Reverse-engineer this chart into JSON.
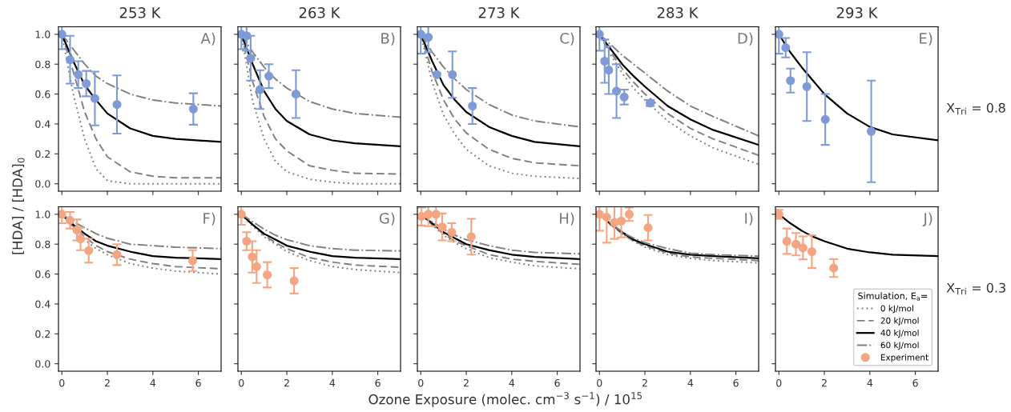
{
  "chart_data": [
    {
      "type": "line",
      "title": "253 K",
      "ylabel": "[HDA] / [HDA]$_{0}$",
      "xlim": [
        -0.15,
        7
      ],
      "xticks": [
        0,
        2,
        4,
        6
      ],
      "ylim": [
        -0.05,
        1.05
      ],
      "yticks": [
        {
          "value": 0,
          "label": "0.0"
        },
        {
          "value": 0.2,
          "label": "0.2"
        },
        {
          "value": 0.4,
          "label": "0.4"
        },
        {
          "value": 0.6,
          "label": "0.6"
        },
        {
          "value": 0.8,
          "label": "0.8"
        },
        {
          "value": 1,
          "label": "1.0"
        }
      ],
      "tick_labels": "y",
      "annotations": [
        "A)"
      ],
      "series": [
        {
          "type": "line",
          "x": [
            0,
            0.5,
            1,
            1.5,
            2,
            3,
            4,
            5,
            7
          ],
          "values": [
            1,
            0.6,
            0.3,
            0.1,
            0.02,
            0,
            0,
            0,
            0
          ],
          "color": "#808080",
          "line_style": "dotted"
        },
        {
          "type": "line",
          "x": [
            0,
            0.5,
            1,
            1.5,
            2,
            3,
            4,
            5,
            7
          ],
          "values": [
            1,
            0.75,
            0.48,
            0.3,
            0.18,
            0.08,
            0.05,
            0.04,
            0.04
          ],
          "color": "#808080",
          "line_style": "dashed"
        },
        {
          "type": "line",
          "x": [
            0,
            0.5,
            1,
            1.5,
            2,
            3,
            4,
            5,
            7
          ],
          "values": [
            1,
            0.82,
            0.66,
            0.56,
            0.47,
            0.37,
            0.32,
            0.3,
            0.28
          ],
          "color": "#000000",
          "line_style": "solid"
        },
        {
          "type": "line",
          "x": [
            0,
            0.5,
            1,
            1.5,
            2,
            3,
            4,
            5,
            7
          ],
          "values": [
            1,
            0.9,
            0.8,
            0.72,
            0.67,
            0.6,
            0.56,
            0.54,
            0.52
          ],
          "color": "#808080",
          "line_style": "dashdot"
        },
        {
          "type": "scatter",
          "marker": "circle",
          "x": [
            0,
            0.36,
            0.72,
            1.07,
            1.45,
            2.42,
            5.78
          ],
          "values": [
            1.0,
            0.83,
            0.73,
            0.67,
            0.57,
            0.53,
            0.5
          ],
          "errors": [
            0.1,
            0.16,
            0.09,
            0.085,
            0.18,
            0.195,
            0.105
          ],
          "color": "#7f9bd6"
        }
      ]
    },
    {
      "type": "line",
      "title": "263 K",
      "xlim": [
        -0.15,
        7
      ],
      "xticks": [
        0,
        2,
        4,
        6
      ],
      "ylim": [
        -0.05,
        1.05
      ],
      "yticks": [
        0,
        0.2,
        0.4,
        0.6,
        0.8,
        1
      ],
      "tick_labels": false,
      "annotations": [
        "B)"
      ],
      "series": [
        {
          "type": "line",
          "x": [
            0,
            0.5,
            1,
            1.5,
            2,
            3,
            4,
            5,
            7
          ],
          "values": [
            1,
            0.55,
            0.3,
            0.15,
            0.08,
            0.03,
            0.01,
            0,
            0
          ],
          "color": "#808080",
          "line_style": "dotted"
        },
        {
          "type": "line",
          "x": [
            0,
            0.5,
            1,
            1.5,
            2,
            3,
            4,
            5,
            7
          ],
          "values": [
            1,
            0.68,
            0.45,
            0.3,
            0.22,
            0.12,
            0.09,
            0.07,
            0.065
          ],
          "color": "#808080",
          "line_style": "dashed"
        },
        {
          "type": "line",
          "x": [
            0,
            0.5,
            1,
            1.5,
            2,
            3,
            4,
            5,
            7
          ],
          "values": [
            1,
            0.8,
            0.62,
            0.5,
            0.42,
            0.33,
            0.29,
            0.27,
            0.25
          ],
          "color": "#000000",
          "line_style": "solid"
        },
        {
          "type": "line",
          "x": [
            0,
            0.5,
            1,
            1.5,
            2,
            3,
            4,
            5,
            7
          ],
          "values": [
            1,
            0.88,
            0.78,
            0.7,
            0.64,
            0.55,
            0.5,
            0.47,
            0.445
          ],
          "color": "#808080",
          "line_style": "dashdot"
        },
        {
          "type": "scatter",
          "marker": "circle",
          "x": [
            0,
            0.23,
            0.41,
            0.82,
            1.21,
            2.4
          ],
          "values": [
            1.0,
            0.99,
            0.84,
            0.63,
            0.72,
            0.6
          ],
          "errors": [
            0.1,
            0.1,
            0.15,
            0.13,
            0.08,
            0.16
          ],
          "color": "#7f9bd6"
        }
      ]
    },
    {
      "type": "line",
      "title": "273 K",
      "xlim": [
        -0.15,
        7
      ],
      "xticks": [
        0,
        2,
        4,
        6
      ],
      "ylim": [
        -0.05,
        1.05
      ],
      "yticks": [
        0,
        0.2,
        0.4,
        0.6,
        0.8,
        1
      ],
      "tick_labels": false,
      "annotations": [
        "C)"
      ],
      "series": [
        {
          "type": "line",
          "x": [
            0,
            0.5,
            1,
            1.5,
            2,
            3,
            4,
            5,
            7
          ],
          "values": [
            1,
            0.68,
            0.46,
            0.33,
            0.23,
            0.12,
            0.07,
            0.05,
            0.035
          ],
          "color": "#808080",
          "line_style": "dotted"
        },
        {
          "type": "line",
          "x": [
            0,
            0.5,
            1,
            1.5,
            2,
            3,
            4,
            5,
            7
          ],
          "values": [
            1,
            0.75,
            0.56,
            0.43,
            0.34,
            0.23,
            0.17,
            0.14,
            0.12
          ],
          "color": "#808080",
          "line_style": "dashed"
        },
        {
          "type": "line",
          "x": [
            0,
            0.5,
            1,
            1.5,
            2,
            3,
            4,
            5,
            7
          ],
          "values": [
            1,
            0.82,
            0.66,
            0.56,
            0.48,
            0.38,
            0.32,
            0.28,
            0.25
          ],
          "color": "#000000",
          "line_style": "solid"
        },
        {
          "type": "line",
          "x": [
            0,
            0.5,
            1,
            1.5,
            2,
            3,
            4,
            5,
            7
          ],
          "values": [
            1,
            0.88,
            0.78,
            0.7,
            0.63,
            0.53,
            0.46,
            0.42,
            0.38
          ],
          "color": "#808080",
          "line_style": "dashdot"
        },
        {
          "type": "scatter",
          "marker": "circle",
          "x": [
            0,
            0.33,
            0.71,
            1.39,
            2.27
          ],
          "values": [
            1.0,
            0.98,
            0.73,
            0.73,
            0.52
          ],
          "errors": [
            0.13,
            0.1,
            null,
            0.155,
            0.12
          ],
          "color": "#7f9bd6"
        }
      ]
    },
    {
      "type": "line",
      "title": "283 K",
      "xlim": [
        -0.15,
        7
      ],
      "xticks": [
        0,
        2,
        4,
        6
      ],
      "ylim": [
        -0.05,
        1.05
      ],
      "yticks": [
        0,
        0.2,
        0.4,
        0.6,
        0.8,
        1
      ],
      "tick_labels": false,
      "annotations": [
        "D)"
      ],
      "series": [
        {
          "type": "line",
          "x": [
            0,
            0.5,
            1,
            1.5,
            2,
            3,
            4,
            5,
            7
          ],
          "values": [
            1,
            0.86,
            0.74,
            0.64,
            0.56,
            0.42,
            0.32,
            0.24,
            0.13
          ],
          "color": "#808080",
          "line_style": "dotted"
        },
        {
          "type": "line",
          "x": [
            0,
            0.5,
            1,
            1.5,
            2,
            3,
            4,
            5,
            7
          ],
          "values": [
            1,
            0.88,
            0.77,
            0.68,
            0.6,
            0.47,
            0.37,
            0.3,
            0.19
          ],
          "color": "#808080",
          "line_style": "dashed"
        },
        {
          "type": "line",
          "x": [
            0,
            0.5,
            1,
            1.5,
            2,
            3,
            4,
            5,
            7
          ],
          "values": [
            1,
            0.9,
            0.8,
            0.72,
            0.65,
            0.52,
            0.43,
            0.36,
            0.26
          ],
          "color": "#000000",
          "line_style": "solid"
        },
        {
          "type": "line",
          "x": [
            0,
            0.5,
            1,
            1.5,
            2,
            3,
            4,
            5,
            7
          ],
          "values": [
            1,
            0.93,
            0.86,
            0.8,
            0.74,
            0.62,
            0.52,
            0.45,
            0.32
          ],
          "color": "#808080",
          "line_style": "dashdot"
        },
        {
          "type": "scatter",
          "marker": "circle",
          "x": [
            0,
            0.23,
            0.41,
            0.75,
            1.09,
            2.23
          ],
          "values": [
            1.0,
            0.82,
            0.76,
            0.62,
            0.58,
            0.54
          ],
          "errors": [
            0.11,
            0.145,
            0.16,
            0.18,
            0.05,
            0.02
          ],
          "color": "#7f9bd6"
        }
      ]
    },
    {
      "type": "line",
      "title": "293 K",
      "xlim": [
        -0.15,
        7
      ],
      "xticks": [
        0,
        2,
        4,
        6
      ],
      "ylim": [
        -0.05,
        1.05
      ],
      "yticks": [
        0,
        0.2,
        0.4,
        0.6,
        0.8,
        1
      ],
      "tick_labels": false,
      "annotations": [
        "E)",
        "X$_{Tri}$ = 0.8"
      ],
      "series": [
        {
          "type": "line",
          "x": [
            0,
            0.5,
            1,
            1.5,
            2,
            3,
            4,
            5,
            7
          ],
          "values": [
            1,
            0.88,
            0.78,
            0.69,
            0.6,
            0.47,
            0.38,
            0.33,
            0.29
          ],
          "color": "#000000",
          "line_style": "solid"
        },
        {
          "type": "scatter",
          "marker": "circle",
          "x": [
            0,
            0.3,
            0.51,
            1.23,
            2.04,
            4.06
          ],
          "values": [
            1.0,
            0.91,
            0.69,
            0.65,
            0.43,
            0.35
          ],
          "errors": [
            0.13,
            0.065,
            0.08,
            0.23,
            0.17,
            0.34
          ],
          "color": "#7f9bd6"
        }
      ]
    },
    {
      "type": "line",
      "xlim": [
        -0.15,
        7
      ],
      "xticks": [
        0,
        2,
        4,
        6
      ],
      "ylim": [
        -0.05,
        1.05
      ],
      "yticks": [
        {
          "value": 0,
          "label": "0.0"
        },
        {
          "value": 0.2,
          "label": "0.2"
        },
        {
          "value": 0.4,
          "label": "0.4"
        },
        {
          "value": 0.6,
          "label": "0.6"
        },
        {
          "value": 0.8,
          "label": "0.8"
        },
        {
          "value": 1,
          "label": "1.0"
        }
      ],
      "annotations": [
        "F)"
      ],
      "series": [
        {
          "type": "line",
          "x": [
            0,
            0.5,
            1,
            1.5,
            2,
            3,
            4,
            5,
            7
          ],
          "values": [
            1,
            0.91,
            0.83,
            0.77,
            0.73,
            0.67,
            0.64,
            0.62,
            0.6
          ],
          "color": "#808080",
          "line_style": "dotted"
        },
        {
          "type": "line",
          "x": [
            0,
            0.5,
            1,
            1.5,
            2,
            3,
            4,
            5,
            7
          ],
          "values": [
            1,
            0.92,
            0.85,
            0.79,
            0.75,
            0.7,
            0.67,
            0.65,
            0.635
          ],
          "color": "#808080",
          "line_style": "dashed"
        },
        {
          "type": "line",
          "x": [
            0,
            0.5,
            1,
            1.5,
            2,
            3,
            4,
            5,
            7
          ],
          "values": [
            1,
            0.93,
            0.87,
            0.82,
            0.79,
            0.75,
            0.72,
            0.71,
            0.7
          ],
          "color": "#000000",
          "line_style": "solid"
        },
        {
          "type": "line",
          "x": [
            0,
            0.5,
            1,
            1.5,
            2,
            3,
            4,
            5,
            7
          ],
          "values": [
            1,
            0.95,
            0.91,
            0.87,
            0.84,
            0.8,
            0.79,
            0.78,
            0.77
          ],
          "color": "#808080",
          "line_style": "dashdot"
        },
        {
          "type": "scatter",
          "marker": "circle",
          "x": [
            0,
            0.36,
            0.66,
            0.82,
            1.18,
            2.42,
            5.75
          ],
          "values": [
            1.0,
            0.96,
            0.895,
            0.835,
            0.757,
            0.73,
            0.69
          ],
          "errors": [
            0.06,
            0.055,
            0.07,
            0.075,
            0.08,
            0.07,
            0.07
          ],
          "color": "#f4a582"
        }
      ]
    },
    {
      "type": "line",
      "xlim": [
        -0.15,
        7
      ],
      "xticks": [
        0,
        2,
        4,
        6
      ],
      "ylim": [
        -0.05,
        1.05
      ],
      "yticks": [
        0,
        0.2,
        0.4,
        0.6,
        0.8,
        1
      ],
      "tick_labels": "x",
      "annotations": [
        "G)"
      ],
      "series": [
        {
          "type": "line",
          "x": [
            0,
            0.5,
            1,
            1.5,
            2,
            3,
            4,
            5,
            7
          ],
          "values": [
            1,
            0.92,
            0.85,
            0.8,
            0.75,
            0.69,
            0.65,
            0.63,
            0.61
          ],
          "color": "#808080",
          "line_style": "dotted"
        },
        {
          "type": "line",
          "x": [
            0,
            0.5,
            1,
            1.5,
            2,
            3,
            4,
            5,
            7
          ],
          "values": [
            1,
            0.93,
            0.86,
            0.81,
            0.77,
            0.71,
            0.68,
            0.66,
            0.645
          ],
          "color": "#808080",
          "line_style": "dashed"
        },
        {
          "type": "line",
          "x": [
            0,
            0.5,
            1,
            1.5,
            2,
            3,
            4,
            5,
            7
          ],
          "values": [
            1,
            0.93,
            0.87,
            0.83,
            0.79,
            0.75,
            0.72,
            0.71,
            0.7
          ],
          "color": "#000000",
          "line_style": "solid"
        },
        {
          "type": "line",
          "x": [
            0,
            0.5,
            1,
            1.5,
            2,
            3,
            4,
            5,
            7
          ],
          "values": [
            1,
            0.95,
            0.9,
            0.86,
            0.83,
            0.79,
            0.77,
            0.76,
            0.755
          ],
          "color": "#808080",
          "line_style": "dashdot"
        },
        {
          "type": "scatter",
          "marker": "circle",
          "x": [
            0,
            0.23,
            0.48,
            0.67,
            1.14,
            2.32
          ],
          "values": [
            1.0,
            0.82,
            0.715,
            0.65,
            0.595,
            0.555
          ],
          "errors": [
            0.07,
            0.06,
            0.105,
            0.11,
            0.085,
            0.085
          ],
          "color": "#f4a582"
        }
      ]
    },
    {
      "type": "line",
      "xlabel": "Ozone Exposure (molec. cm$^{−3}$ s$^{−1}$) / 10$^{15}$",
      "xlim": [
        -0.15,
        7
      ],
      "xticks": [
        0,
        2,
        4,
        6
      ],
      "ylim": [
        -0.05,
        1.05
      ],
      "yticks": [
        0,
        0.2,
        0.4,
        0.6,
        0.8,
        1
      ],
      "tick_labels": "x",
      "annotations": [
        "H)"
      ],
      "series": [
        {
          "type": "line",
          "x": [
            0,
            0.5,
            1,
            1.5,
            2,
            3,
            4,
            5,
            7
          ],
          "values": [
            1,
            0.93,
            0.86,
            0.81,
            0.77,
            0.71,
            0.68,
            0.655,
            0.635
          ],
          "color": "#808080",
          "line_style": "dotted"
        },
        {
          "type": "line",
          "x": [
            0,
            0.5,
            1,
            1.5,
            2,
            3,
            4,
            5,
            7
          ],
          "values": [
            1,
            0.93,
            0.87,
            0.82,
            0.79,
            0.73,
            0.7,
            0.685,
            0.665
          ],
          "color": "#808080",
          "line_style": "dashed"
        },
        {
          "type": "line",
          "x": [
            0,
            0.5,
            1,
            1.5,
            2,
            3,
            4,
            5,
            7
          ],
          "values": [
            1,
            0.94,
            0.88,
            0.84,
            0.8,
            0.76,
            0.73,
            0.715,
            0.7
          ],
          "color": "#000000",
          "line_style": "solid"
        },
        {
          "type": "line",
          "x": [
            0,
            0.5,
            1,
            1.5,
            2,
            3,
            4,
            5,
            7
          ],
          "values": [
            1,
            0.95,
            0.9,
            0.86,
            0.83,
            0.79,
            0.76,
            0.745,
            0.735
          ],
          "color": "#808080",
          "line_style": "dashdot"
        },
        {
          "type": "scatter",
          "marker": "circle",
          "x": [
            0.03,
            0.33,
            0.67,
            0.94,
            1.36,
            2.22
          ],
          "values": [
            0.985,
            1.0,
            1.0,
            0.915,
            0.88,
            0.85
          ],
          "errors": [
            0.06,
            0.08,
            0.08,
            0.09,
            0.06,
            0.12
          ],
          "color": "#f4a582"
        }
      ]
    },
    {
      "type": "line",
      "xlim": [
        -0.15,
        7
      ],
      "xticks": [
        0,
        2,
        4,
        6
      ],
      "ylim": [
        -0.05,
        1.05
      ],
      "yticks": [
        0,
        0.2,
        0.4,
        0.6,
        0.8,
        1
      ],
      "tick_labels": "x",
      "annotations": [
        "I)"
      ],
      "legend": "right",
      "legend_title": "Simulation, E$_{a}$=",
      "series": [
        {
          "type": "line",
          "name": "0 kJ/mol",
          "x": [
            0,
            0.5,
            1,
            1.5,
            2,
            3,
            4,
            5,
            7
          ],
          "values": [
            1,
            0.93,
            0.87,
            0.82,
            0.78,
            0.73,
            0.705,
            0.69,
            0.675
          ],
          "color": "#808080",
          "line_style": "dotted"
        },
        {
          "type": "line",
          "name": "20 kJ/mol",
          "x": [
            0,
            0.5,
            1,
            1.5,
            2,
            3,
            4,
            5,
            7
          ],
          "values": [
            1,
            0.93,
            0.87,
            0.82,
            0.79,
            0.74,
            0.715,
            0.705,
            0.69
          ],
          "color": "#808080",
          "line_style": "dashed"
        },
        {
          "type": "line",
          "name": "40 kJ/mol",
          "x": [
            0,
            0.5,
            1,
            1.5,
            2,
            3,
            4,
            5,
            7
          ],
          "values": [
            1,
            0.935,
            0.88,
            0.83,
            0.8,
            0.75,
            0.73,
            0.72,
            0.705
          ],
          "color": "#000000",
          "line_style": "solid"
        },
        {
          "type": "line",
          "name": "60 kJ/mol",
          "x": [
            0,
            0.5,
            1,
            1.5,
            2,
            3,
            4,
            5,
            7
          ],
          "values": [
            1,
            0.94,
            0.88,
            0.84,
            0.81,
            0.77,
            0.74,
            0.73,
            0.72
          ],
          "color": "#808080",
          "line_style": "dashdot"
        },
        {
          "type": "scatter",
          "name": "Experiment",
          "marker": "circle",
          "x": [
            0,
            0.32,
            0.66,
            0.96,
            1.31,
            2.14
          ],
          "values": [
            1.0,
            0.98,
            0.945,
            0.955,
            1.0,
            0.91
          ],
          "errors": [
            0.11,
            0.17,
            0.11,
            0.11,
            0.045,
            0.085
          ],
          "color": "#f4a582"
        }
      ]
    },
    {
      "type": "line",
      "xlim": [
        -0.15,
        7
      ],
      "xticks": [
        0,
        2,
        4,
        6
      ],
      "ylim": [
        -0.05,
        1.05
      ],
      "yticks": [
        0,
        0.2,
        0.4,
        0.6,
        0.8,
        1
      ],
      "tick_labels": "x",
      "annotations": [
        "J)",
        "X$_{Tri}$ = 0.3"
      ],
      "series": [
        {
          "type": "line",
          "x": [
            0,
            0.5,
            1,
            1.5,
            2,
            3,
            4,
            5,
            7
          ],
          "values": [
            1,
            0.94,
            0.89,
            0.85,
            0.82,
            0.77,
            0.745,
            0.73,
            0.72
          ],
          "color": "#000000",
          "line_style": "solid"
        },
        {
          "type": "scatter",
          "marker": "circle",
          "x": [
            0,
            0.35,
            0.75,
            1.06,
            1.45,
            2.41
          ],
          "values": [
            1.0,
            0.82,
            0.8,
            0.775,
            0.75,
            0.64
          ],
          "errors": [
            0.03,
            0.085,
            0.075,
            0.077,
            0.11,
            0.06
          ],
          "color": "#f4a582"
        }
      ]
    }
  ]
}
